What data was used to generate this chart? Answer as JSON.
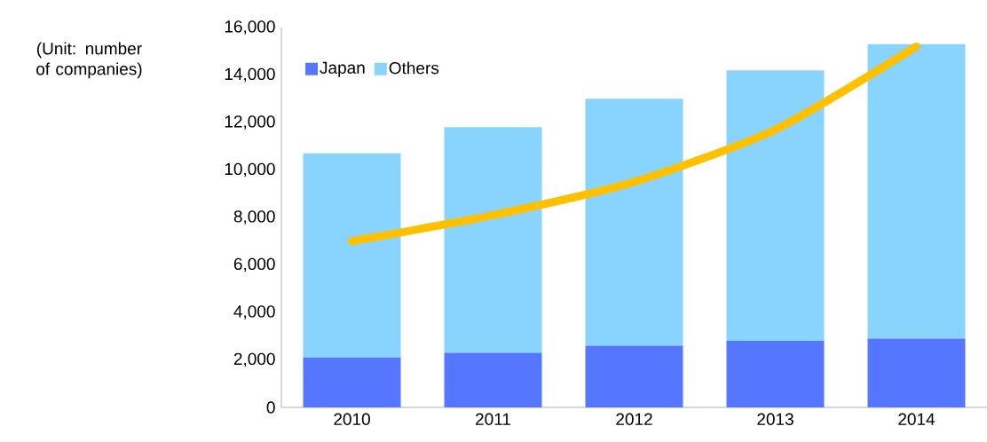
{
  "chart_data": {
    "type": "bar",
    "stacked": true,
    "ylabel": "(Unit: number of companies)",
    "categories": [
      "2010",
      "2011",
      "2012",
      "2013",
      "2014"
    ],
    "series": [
      {
        "name": "Japan",
        "color": "#5577ff",
        "values": [
          2100,
          2300,
          2600,
          2800,
          2900
        ]
      },
      {
        "name": "Others",
        "color": "#88d4ff",
        "values": [
          8600,
          9500,
          10400,
          11400,
          12400
        ]
      },
      {
        "type": "line",
        "color": "#ffc000",
        "values": [
          7000,
          8100,
          9500,
          11700,
          15200
        ]
      }
    ],
    "ylim": [
      0,
      16000
    ],
    "yticks": [
      0,
      {
        "value": 2000,
        "label": "2,000"
      },
      {
        "value": 4000,
        "label": "4,000"
      },
      {
        "value": 6000,
        "label": "6,000"
      },
      {
        "value": 8000,
        "label": "8,000"
      },
      {
        "value": 10000,
        "label": "10,000"
      },
      {
        "value": 12000,
        "label": "12,000"
      },
      {
        "value": 14000,
        "label": "14,000"
      },
      {
        "value": 16000,
        "label": "16,000"
      }
    ],
    "legend": "top left",
    "grid": false
  }
}
